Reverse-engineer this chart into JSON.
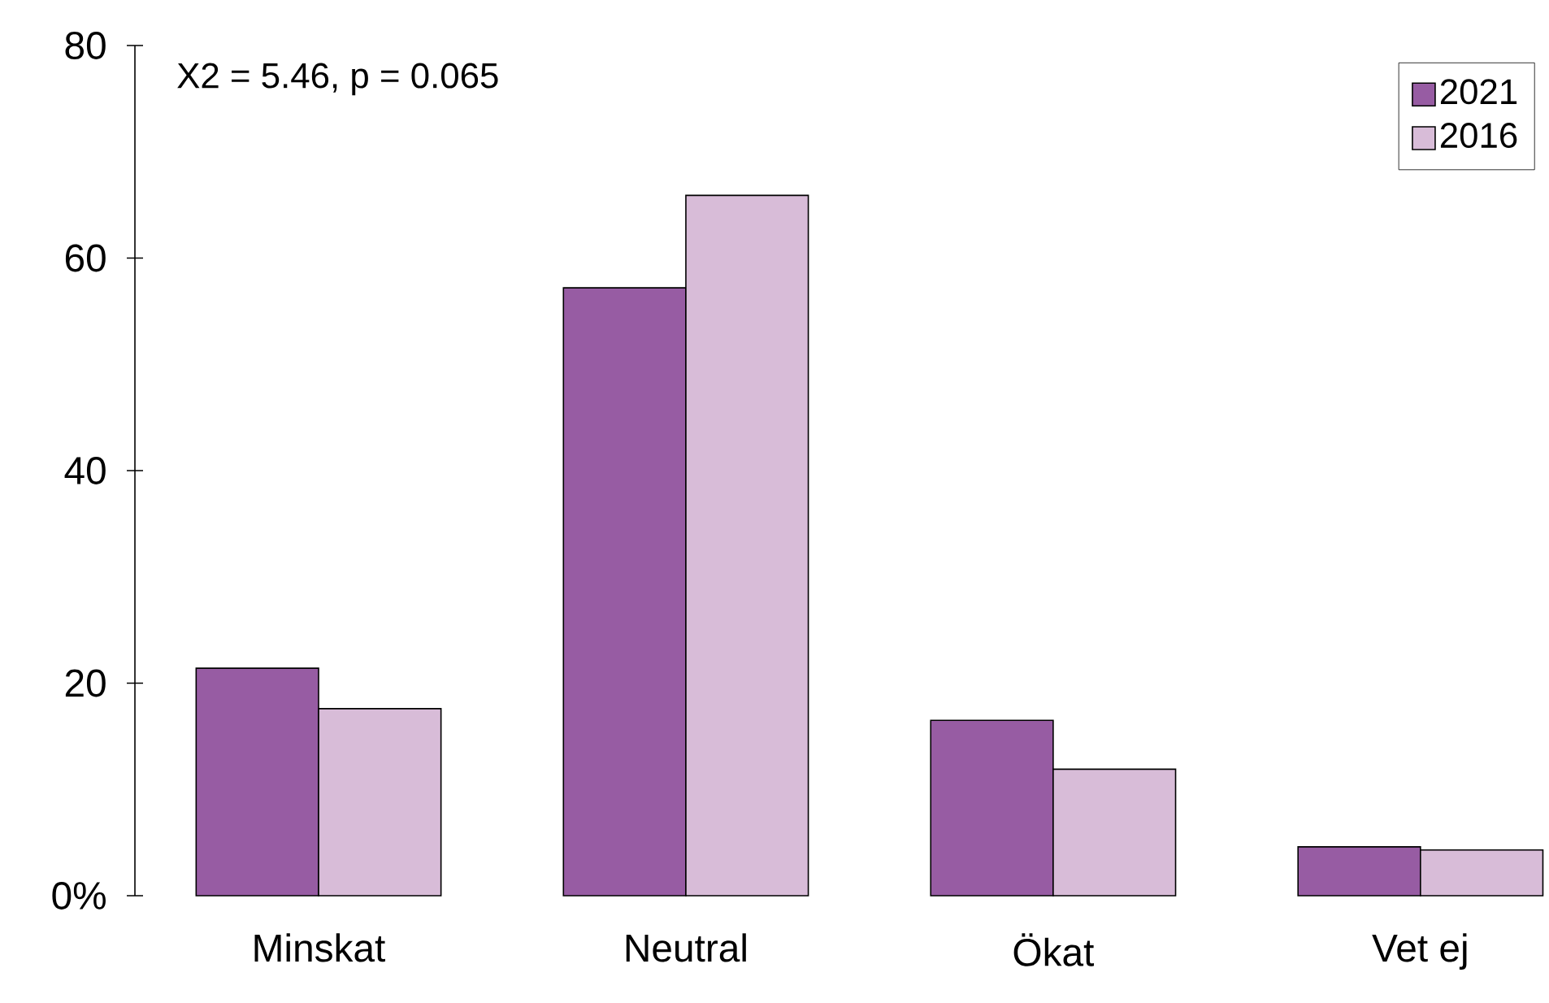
{
  "chart_data": {
    "type": "bar",
    "categories": [
      "Minskat",
      "Neutral",
      "Ökat",
      "Vet ej"
    ],
    "series": [
      {
        "name": "2021",
        "color": "#975ca3",
        "values": [
          21.4,
          57.2,
          16.5,
          4.6
        ]
      },
      {
        "name": "2016",
        "color": "#d8bcd8",
        "values": [
          17.6,
          65.9,
          11.9,
          4.3
        ]
      }
    ],
    "ylim": [
      0,
      80
    ],
    "yticks": [
      {
        "value": 0,
        "label": "0%"
      },
      20,
      40,
      60,
      80
    ],
    "annotations": [
      "X2 = 5.46, p = 0.065"
    ],
    "legend": "top right"
  }
}
